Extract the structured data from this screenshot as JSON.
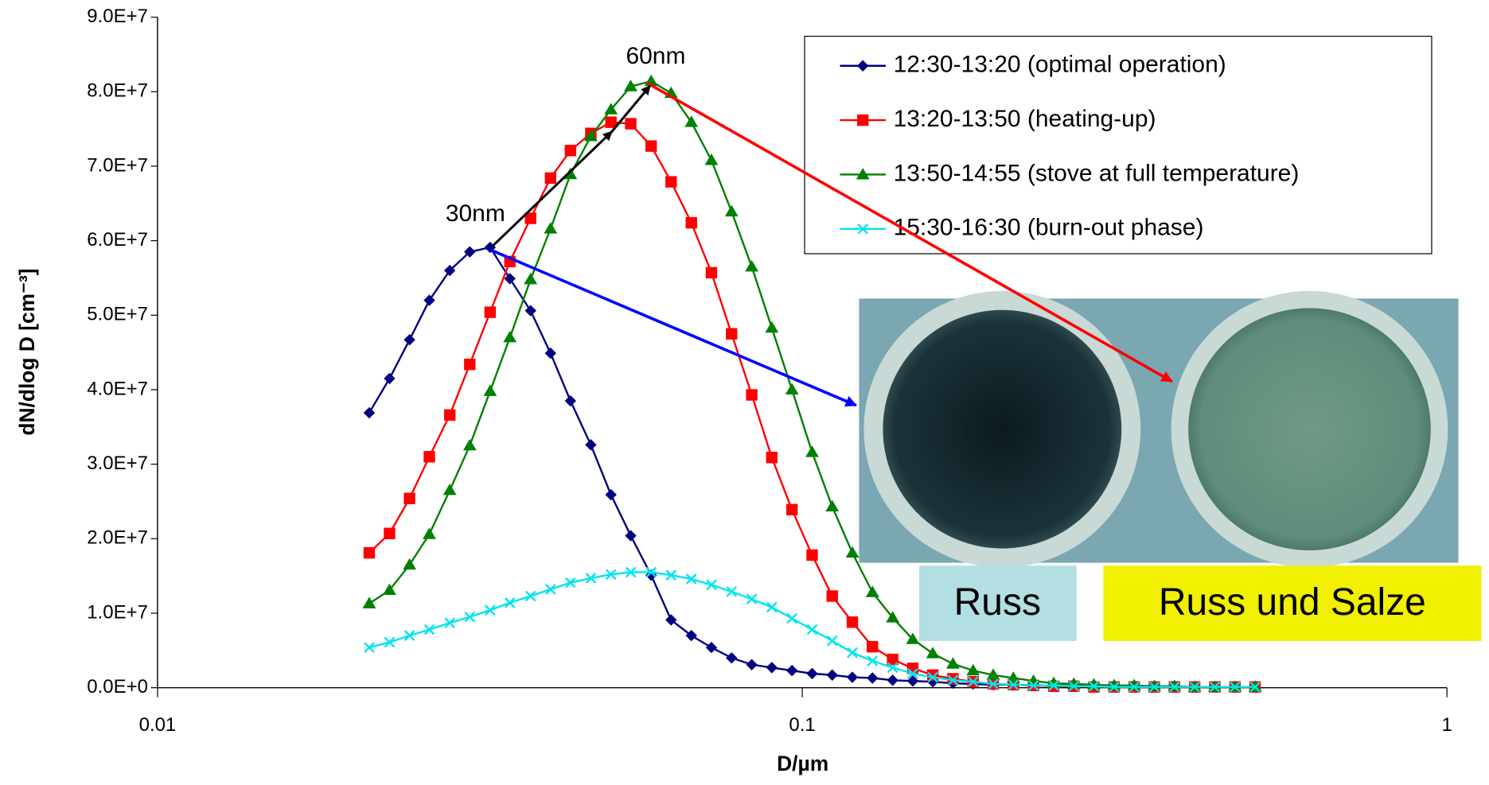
{
  "chart_data": {
    "type": "line",
    "x_label": "D/µm",
    "y_label": "dN/dlog D [cm⁻³]",
    "x_log": true,
    "x": [
      0.0213,
      0.0229,
      0.0246,
      0.0264,
      0.0284,
      0.0305,
      0.0328,
      0.0352,
      0.0379,
      0.0407,
      0.0437,
      0.047,
      0.0505,
      0.0542,
      0.0583,
      0.0626,
      0.0673,
      0.0723,
      0.0777,
      0.0835,
      0.0897,
      0.0964,
      0.1036,
      0.1113,
      0.1196,
      0.1285,
      0.1381,
      0.1484,
      0.1594,
      0.1713,
      0.1841,
      0.1978,
      0.2126,
      0.2284,
      0.2455,
      0.2638,
      0.2834,
      0.3046,
      0.3273,
      0.3517,
      0.3779,
      0.4061,
      0.4364,
      0.469,
      0.504
    ],
    "xlim": [
      0.01,
      1
    ],
    "xticks": [
      0.01,
      0.1,
      1
    ],
    "ylim": [
      0,
      90000000
    ],
    "yticks": [
      {
        "value": 0,
        "label": "0.0E+0"
      },
      {
        "value": 10000000,
        "label": "1.0E+7"
      },
      {
        "value": 20000000,
        "label": "2.0E+7"
      },
      {
        "value": 30000000,
        "label": "3.0E+7"
      },
      {
        "value": 40000000,
        "label": "4.0E+7"
      },
      {
        "value": 50000000,
        "label": "5.0E+7"
      },
      {
        "value": 60000000,
        "label": "6.0E+7"
      },
      {
        "value": 70000000,
        "label": "7.0E+7"
      },
      {
        "value": 80000000,
        "label": "8.0E+7"
      },
      {
        "value": 90000000,
        "label": "9.0E+7"
      }
    ],
    "legend": "top-right",
    "series": [
      {
        "name": "12:30-13:20 (optimal operation)",
        "color": "#000080",
        "marker": "diamond",
        "values": [
          36900000,
          41500000,
          46700000,
          52000000,
          56000000,
          58500000,
          59100000,
          54900000,
          50600000,
          44900000,
          38500000,
          32600000,
          25900000,
          20400000,
          15100000,
          9100000,
          7000000,
          5400000,
          4000000,
          3100000,
          2700000,
          2300000,
          1900000,
          1700000,
          1400000,
          1300000,
          1000000,
          900000,
          800000,
          600000,
          500000,
          400000,
          400000,
          300000,
          300000,
          300000,
          200000,
          200000,
          200000,
          100000,
          100000,
          100000,
          100000,
          100000,
          100000
        ]
      },
      {
        "name": "13:20-13:50 (heating-up)",
        "color": "#ff0000",
        "marker": "square",
        "values": [
          18100000,
          20700000,
          25400000,
          31000000,
          36600000,
          43400000,
          50400000,
          57200000,
          63000000,
          68400000,
          72100000,
          74400000,
          75900000,
          75700000,
          72700000,
          67900000,
          62400000,
          55700000,
          47500000,
          39300000,
          30900000,
          23900000,
          17800000,
          12300000,
          8800000,
          5500000,
          3800000,
          2600000,
          1700000,
          1200000,
          800000,
          500000,
          400000,
          300000,
          200000,
          200000,
          100000,
          100000,
          100000,
          100000,
          100000,
          100000,
          100000,
          100000,
          100000
        ]
      },
      {
        "name": "13:50-14:55 (stove at full temperature)",
        "color": "#008000",
        "marker": "triangle",
        "values": [
          11300000,
          13100000,
          16500000,
          20600000,
          26500000,
          32500000,
          39800000,
          47000000,
          54800000,
          61600000,
          68900000,
          74000000,
          77600000,
          80700000,
          81400000,
          79800000,
          75900000,
          70800000,
          63900000,
          56500000,
          48300000,
          40000000,
          31600000,
          24300000,
          18100000,
          12800000,
          9400000,
          6500000,
          4600000,
          3200000,
          2300000,
          1700000,
          1300000,
          900000,
          600000,
          500000,
          400000,
          300000,
          300000,
          200000,
          200000,
          100000,
          100000,
          100000,
          100000
        ]
      },
      {
        "name": "15:30-16:30 (burn-out phase)",
        "color": "#00e5ee",
        "marker": "x",
        "values": [
          5400000,
          6100000,
          7000000,
          7800000,
          8700000,
          9500000,
          10400000,
          11400000,
          12300000,
          13200000,
          14100000,
          14700000,
          15200000,
          15500000,
          15500000,
          15100000,
          14600000,
          13800000,
          12900000,
          11900000,
          10800000,
          9300000,
          7800000,
          6300000,
          4700000,
          3600000,
          2700000,
          1900000,
          1400000,
          1000000,
          800000,
          500000,
          400000,
          300000,
          300000,
          200000,
          200000,
          100000,
          100000,
          100000,
          100000,
          100000,
          100000,
          100000,
          100000
        ]
      }
    ],
    "annotations": [
      "30nm",
      "60nm"
    ],
    "image_labels": [
      "Russ",
      "Russ und Salze"
    ]
  }
}
